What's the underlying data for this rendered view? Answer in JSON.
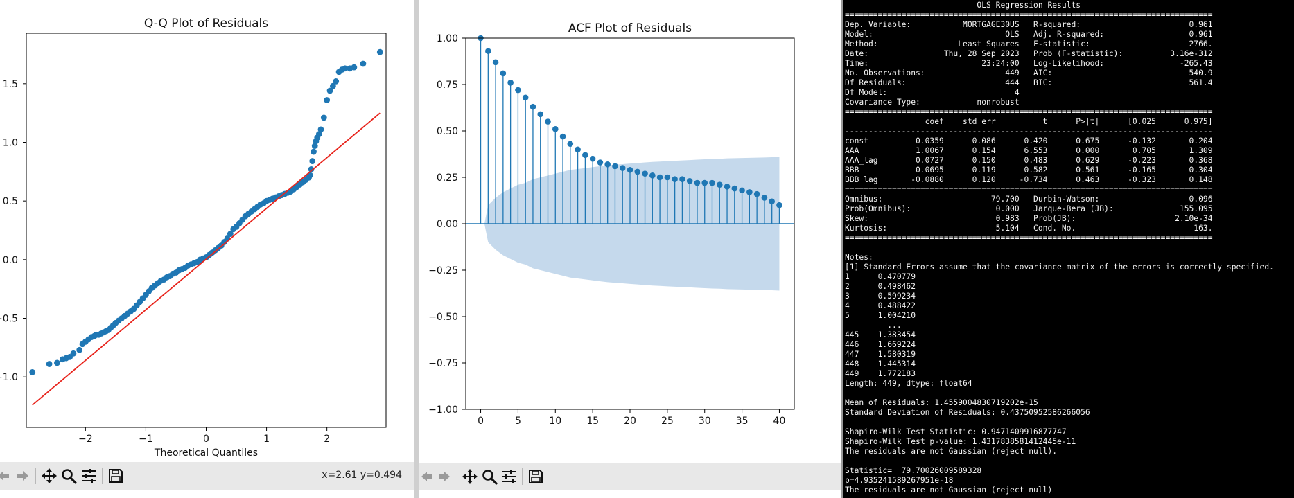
{
  "qq_window": {
    "title": "Q-Q Plot of Residuals",
    "xlabel": "Theoretical Quantiles",
    "coords": "x=2.61 y=0.494"
  },
  "acf_window": {
    "title": "ACF Plot of Residuals"
  },
  "chart_data": [
    {
      "type": "scatter",
      "title": "Q-Q Plot of Residuals",
      "xlabel": "Theoretical Quantiles",
      "ylabel": "",
      "xlim": [
        -2.98,
        2.98
      ],
      "ylim": [
        -1.43,
        1.93
      ],
      "xticks": [
        "−2",
        "−1",
        "0",
        "1",
        "2"
      ],
      "yticks": [
        "−1.0",
        "−0.5",
        "0.0",
        "0.5",
        "1.0",
        "1.5"
      ],
      "reference_line": {
        "x": [
          -2.88,
          2.88
        ],
        "y": [
          -1.24,
          1.25
        ],
        "color": "#e8251d"
      },
      "marker_color": "#1f77b4",
      "x": [
        -2.88,
        -2.6,
        -2.47,
        -2.38,
        -2.32,
        -2.26,
        -2.2,
        -2.1,
        -2.05,
        -2.0,
        -1.95,
        -1.9,
        -1.85,
        -1.82,
        -1.78,
        -1.74,
        -1.7,
        -1.66,
        -1.62,
        -1.58,
        -1.54,
        -1.5,
        -1.45,
        -1.4,
        -1.35,
        -1.3,
        -1.25,
        -1.2,
        -1.15,
        -1.1,
        -1.05,
        -1.0,
        -0.95,
        -0.9,
        -0.85,
        -0.8,
        -0.75,
        -0.7,
        -0.65,
        -0.6,
        -0.55,
        -0.5,
        -0.45,
        -0.4,
        -0.35,
        -0.3,
        -0.25,
        -0.2,
        -0.15,
        -0.1,
        -0.05,
        0.0,
        0.05,
        0.1,
        0.15,
        0.2,
        0.25,
        0.3,
        0.35,
        0.4,
        0.45,
        0.5,
        0.55,
        0.6,
        0.65,
        0.7,
        0.75,
        0.8,
        0.85,
        0.9,
        0.95,
        1.0,
        1.05,
        1.1,
        1.15,
        1.2,
        1.25,
        1.3,
        1.35,
        1.4,
        1.45,
        1.5,
        1.55,
        1.6,
        1.65,
        1.7,
        1.72,
        1.74,
        1.76,
        1.78,
        1.8,
        1.82,
        1.84,
        1.87,
        1.9,
        1.95,
        2.0,
        2.05,
        2.1,
        2.15,
        2.2,
        2.25,
        2.3,
        2.38,
        2.45,
        2.6,
        2.88
      ],
      "y": [
        -0.96,
        -0.89,
        -0.88,
        -0.85,
        -0.84,
        -0.83,
        -0.8,
        -0.77,
        -0.72,
        -0.7,
        -0.68,
        -0.66,
        -0.65,
        -0.64,
        -0.64,
        -0.63,
        -0.62,
        -0.61,
        -0.6,
        -0.58,
        -0.56,
        -0.54,
        -0.52,
        -0.5,
        -0.48,
        -0.46,
        -0.44,
        -0.42,
        -0.39,
        -0.36,
        -0.33,
        -0.3,
        -0.27,
        -0.24,
        -0.22,
        -0.2,
        -0.18,
        -0.17,
        -0.15,
        -0.14,
        -0.12,
        -0.11,
        -0.09,
        -0.08,
        -0.07,
        -0.05,
        -0.04,
        -0.03,
        -0.02,
        0.0,
        0.01,
        0.02,
        0.04,
        0.06,
        0.08,
        0.1,
        0.12,
        0.15,
        0.18,
        0.22,
        0.26,
        0.28,
        0.31,
        0.34,
        0.37,
        0.39,
        0.41,
        0.43,
        0.45,
        0.47,
        0.48,
        0.5,
        0.51,
        0.52,
        0.53,
        0.54,
        0.55,
        0.56,
        0.57,
        0.58,
        0.6,
        0.62,
        0.64,
        0.66,
        0.68,
        0.7,
        0.72,
        0.77,
        0.84,
        0.92,
        0.97,
        1.01,
        1.04,
        1.07,
        1.11,
        1.21,
        1.36,
        1.44,
        1.48,
        1.52,
        1.6,
        1.62,
        1.63,
        1.63,
        1.64,
        1.67,
        1.77
      ]
    },
    {
      "type": "stem",
      "title": "ACF Plot of Residuals",
      "xlabel": "",
      "ylabel": "",
      "xlim": [
        -2.0,
        42.0
      ],
      "ylim": [
        -1.0,
        1.0
      ],
      "xticks": [
        "0",
        "5",
        "10",
        "15",
        "20",
        "25",
        "30",
        "35",
        "40"
      ],
      "yticks": [
        "−1.00",
        "−0.75",
        "−0.50",
        "−0.25",
        "0.00",
        "0.25",
        "0.50",
        "0.75",
        "1.00"
      ],
      "marker_color": "#1f77b4",
      "band_color": "#c5d9ec",
      "lags": [
        0,
        1,
        2,
        3,
        4,
        5,
        6,
        7,
        8,
        9,
        10,
        11,
        12,
        13,
        14,
        15,
        16,
        17,
        18,
        19,
        20,
        21,
        22,
        23,
        24,
        25,
        26,
        27,
        28,
        29,
        30,
        31,
        32,
        33,
        34,
        35,
        36,
        37,
        38,
        39,
        40
      ],
      "acf": [
        1.0,
        0.93,
        0.87,
        0.81,
        0.76,
        0.72,
        0.68,
        0.63,
        0.59,
        0.55,
        0.51,
        0.47,
        0.43,
        0.4,
        0.37,
        0.35,
        0.33,
        0.32,
        0.31,
        0.3,
        0.29,
        0.28,
        0.27,
        0.26,
        0.25,
        0.25,
        0.24,
        0.24,
        0.23,
        0.22,
        0.22,
        0.22,
        0.21,
        0.2,
        0.19,
        0.18,
        0.17,
        0.16,
        0.14,
        0.12,
        0.1
      ],
      "confint_upper": [
        0.0,
        0.1,
        0.14,
        0.17,
        0.19,
        0.21,
        0.22,
        0.24,
        0.25,
        0.26,
        0.27,
        0.28,
        0.29,
        0.295,
        0.3,
        0.305,
        0.31,
        0.315,
        0.318,
        0.321,
        0.324,
        0.327,
        0.33,
        0.333,
        0.335,
        0.337,
        0.339,
        0.341,
        0.343,
        0.345,
        0.347,
        0.349,
        0.35,
        0.352,
        0.353,
        0.354,
        0.355,
        0.356,
        0.357,
        0.358,
        0.36
      ]
    }
  ],
  "terminal": {
    "lines": [
      "                            OLS Regression Results                            ",
      "==============================================================================",
      "Dep. Variable:           MORTGAGE30US   R-squared:                       0.961",
      "Model:                            OLS   Adj. R-squared:                  0.961",
      "Method:                 Least Squares   F-statistic:                     2766.",
      "Date:                Thu, 28 Sep 2023   Prob (F-statistic):          3.16e-312",
      "Time:                        23:24:00   Log-Likelihood:                -265.43",
      "No. Observations:                 449   AIC:                             540.9",
      "Df Residuals:                     444   BIC:                             561.4",
      "Df Model:                           4                                         ",
      "Covariance Type:            nonrobust                                         ",
      "==============================================================================",
      "                 coef    std err          t      P>|t|      [0.025      0.975]",
      "------------------------------------------------------------------------------",
      "const          0.0359      0.086      0.420      0.675      -0.132       0.204",
      "AAA            1.0067      0.154      6.553      0.000       0.705       1.309",
      "AAA_lag        0.0727      0.150      0.483      0.629      -0.223       0.368",
      "BBB            0.0695      0.119      0.582      0.561      -0.165       0.304",
      "BBB_lag       -0.0880      0.120     -0.734      0.463      -0.323       0.148",
      "==============================================================================",
      "Omnibus:                       79.700   Durbin-Watson:                   0.096",
      "Prob(Omnibus):                  0.000   Jarque-Bera (JB):              155.095",
      "Skew:                           0.983   Prob(JB):                     2.10e-34",
      "Kurtosis:                       5.104   Cond. No.                         163.",
      "==============================================================================",
      "",
      "Notes:",
      "[1] Standard Errors assume that the covariance matrix of the errors is correctly specified.",
      "1      0.470779",
      "2      0.498462",
      "3      0.599234",
      "4      0.488422",
      "5      1.004210",
      "         ...   ",
      "445    1.383454",
      "446    1.669224",
      "447    1.580319",
      "448    1.445314",
      "449    1.772183",
      "Length: 449, dtype: float64",
      "",
      "Mean of Residuals: 1.4559004830719202e-15",
      "Standard Deviation of Residuals: 0.43750952586266056",
      "",
      "Shapiro-Wilk Test Statistic: 0.9471409916877747",
      "Shapiro-Wilk Test p-value: 1.4317838581412445e-11",
      "The residuals are not Gaussian (reject null).",
      "",
      "Statistic=  79.70026009589328",
      "p=4.935241589267951e-18",
      "The residuals are not Gaussian (reject null)"
    ]
  }
}
